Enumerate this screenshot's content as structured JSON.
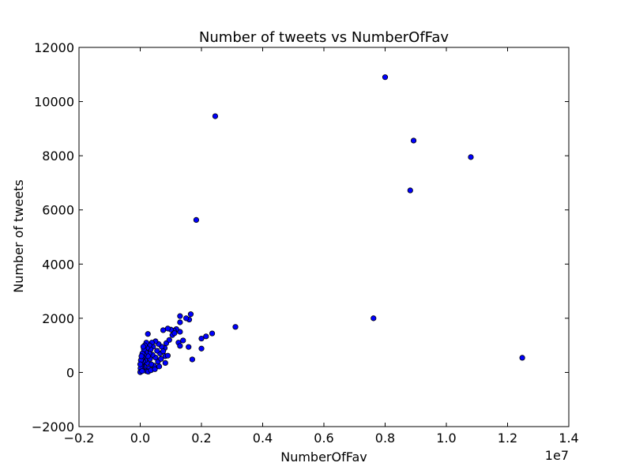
{
  "chart_data": {
    "type": "scatter",
    "title": "Number of tweets vs NumberOfFav",
    "xlabel": "NumberOfFav",
    "ylabel": "Number of tweets",
    "x_offset_label": "1e7",
    "xlim": [
      -0.2,
      1.4
    ],
    "ylim": [
      -2000,
      12000
    ],
    "xticks": [
      -0.2,
      0.0,
      0.2,
      0.4,
      0.6,
      0.8,
      1.0,
      1.2,
      1.4
    ],
    "xtick_labels": [
      "−0.2",
      "0.0",
      "0.2",
      "0.4",
      "0.6",
      "0.8",
      "1.0",
      "1.2",
      "1.4"
    ],
    "yticks": [
      -2000,
      0,
      2000,
      4000,
      6000,
      8000,
      10000,
      12000
    ],
    "ytick_labels": [
      "−2000",
      "0",
      "2000",
      "4000",
      "6000",
      "8000",
      "10000",
      "12000"
    ],
    "grid": false,
    "marker_color": "#0000ff",
    "marker_edge_color": "#000000",
    "x_units_note": "x values in units of 1e7",
    "points": [
      [
        0.8,
        10900
      ],
      [
        0.245,
        9460
      ],
      [
        0.893,
        8560
      ],
      [
        1.08,
        7950
      ],
      [
        0.882,
        6720
      ],
      [
        0.183,
        5630
      ],
      [
        0.762,
        2000
      ],
      [
        1.248,
        540
      ],
      [
        0.311,
        1680
      ],
      [
        0.165,
        2150
      ],
      [
        0.16,
        1950
      ],
      [
        0.13,
        2080
      ],
      [
        0.15,
        2000
      ],
      [
        0.13,
        1850
      ],
      [
        0.235,
        1440
      ],
      [
        0.215,
        1330
      ],
      [
        0.2,
        1250
      ],
      [
        0.2,
        880
      ],
      [
        0.17,
        480
      ],
      [
        0.158,
        940
      ],
      [
        0.13,
        1500
      ],
      [
        0.118,
        1600
      ],
      [
        0.11,
        1540
      ],
      [
        0.105,
        1380
      ],
      [
        0.125,
        1100
      ],
      [
        0.13,
        980
      ],
      [
        0.1,
        1580
      ],
      [
        0.09,
        1620
      ],
      [
        0.075,
        1560
      ],
      [
        0.085,
        1080
      ],
      [
        0.08,
        900
      ],
      [
        0.082,
        600
      ],
      [
        0.082,
        350
      ],
      [
        0.07,
        950
      ],
      [
        0.065,
        700
      ],
      [
        0.06,
        1050
      ],
      [
        0.058,
        400
      ],
      [
        0.055,
        800
      ],
      [
        0.05,
        1150
      ],
      [
        0.05,
        550
      ],
      [
        0.045,
        250
      ],
      [
        0.042,
        950
      ],
      [
        0.04,
        650
      ],
      [
        0.038,
        1100
      ],
      [
        0.036,
        300
      ],
      [
        0.034,
        850
      ],
      [
        0.032,
        500
      ],
      [
        0.03,
        1000
      ],
      [
        0.03,
        700
      ],
      [
        0.028,
        150
      ],
      [
        0.025,
        1420
      ],
      [
        0.025,
        600
      ],
      [
        0.022,
        900
      ],
      [
        0.022,
        350
      ],
      [
        0.02,
        1100
      ],
      [
        0.02,
        50
      ],
      [
        0.018,
        750
      ],
      [
        0.016,
        450
      ],
      [
        0.015,
        1000
      ],
      [
        0.014,
        200
      ],
      [
        0.012,
        650
      ],
      [
        0.012,
        850
      ],
      [
        0.01,
        950
      ],
      [
        0.01,
        400
      ],
      [
        0.009,
        550
      ],
      [
        0.008,
        150
      ],
      [
        0.007,
        700
      ],
      [
        0.006,
        300
      ],
      [
        0.005,
        500
      ],
      [
        0.005,
        100
      ],
      [
        0.004,
        350
      ],
      [
        0.003,
        250
      ],
      [
        0.002,
        450
      ],
      [
        0.002,
        50
      ],
      [
        0.001,
        150
      ],
      [
        0.001,
        20
      ],
      [
        0.0,
        300
      ],
      [
        0.0,
        10
      ],
      [
        0.004,
        600
      ],
      [
        0.006,
        50
      ],
      [
        0.026,
        30
      ],
      [
        0.035,
        80
      ],
      [
        0.048,
        120
      ],
      [
        0.062,
        220
      ],
      [
        0.068,
        500
      ],
      [
        0.075,
        780
      ],
      [
        0.09,
        620
      ],
      [
        0.095,
        1200
      ],
      [
        0.112,
        1450
      ],
      [
        0.14,
        1180
      ]
    ]
  }
}
